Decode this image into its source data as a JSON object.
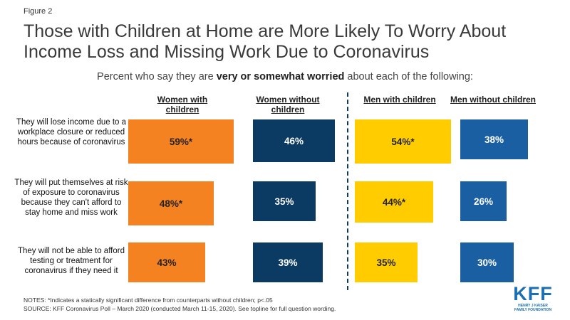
{
  "figure_label": "Figure 2",
  "title": "Those with Children at Home are More Likely To Worry About Income Loss and Missing Work Due to Coronavirus",
  "subtitle": {
    "prefix": "Percent who say they are ",
    "bold": "very or somewhat worried",
    "suffix": " about each of the following:"
  },
  "chart_data": {
    "type": "bar",
    "title": "Those with Children at Home are More Likely To Worry About Income Loss and Missing Work Due to Coronavirus",
    "categories": [
      "They will lose income due to a workplace closure or reduced hours because of coronavirus",
      "They will put themselves at risk of exposure to coronavirus because they can't afford to stay home and miss work",
      "They will not be able to afford testing or treatment for coronavirus if they need it"
    ],
    "series": [
      {
        "name": "Women with children",
        "values": [
          59,
          48,
          43
        ],
        "labels": [
          "59%*",
          "48%*",
          "43%"
        ],
        "color": "#f58220"
      },
      {
        "name": "Women without children",
        "values": [
          46,
          35,
          39
        ],
        "labels": [
          "46%",
          "35%",
          "39%"
        ],
        "color": "#0b3a63"
      },
      {
        "name": "Men with children",
        "values": [
          54,
          44,
          35
        ],
        "labels": [
          "54%*",
          "44%*",
          "35%"
        ],
        "color": "#ffcc00"
      },
      {
        "name": "Men without children",
        "values": [
          38,
          26,
          30
        ],
        "labels": [
          "38%",
          "26%",
          "30%"
        ],
        "color": "#1b5fa3"
      }
    ],
    "unit": "%"
  },
  "notes": "NOTES: *Indicates a statically significant difference from counterparts without children; p<.05",
  "source": "SOURCE: KFF Coronavirus  Poll – March 2020 (conducted March 11-15, 2020). See topline for full question wording.",
  "logo": {
    "mark": "KFF",
    "line1": "HENRY J KAISER",
    "line2": "FAMILY FOUNDATION"
  }
}
